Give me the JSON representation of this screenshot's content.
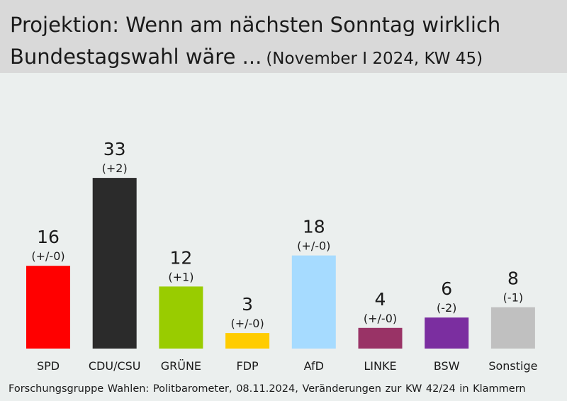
{
  "title_line1": "Projektion: Wenn am nächsten Sonntag wirklich",
  "title_line2": "Bundestagswahl wäre ...",
  "subtitle": "(November I 2024, KW 45)",
  "footer": "Forschungsgruppe Wahlen: Politbarometer, 08.11.2024, Veränderungen zur KW 42/24 in Klammern",
  "chart_data": {
    "type": "bar",
    "title": "Projektion: Wenn am nächsten Sonntag wirklich Bundestagswahl wäre ...",
    "subtitle": "(November I 2024, KW 45)",
    "xlabel": "",
    "ylabel": "",
    "ylim": [
      0,
      40
    ],
    "categories": [
      "SPD",
      "CDU/CSU",
      "GRÜNE",
      "FDP",
      "AfD",
      "LINKE",
      "BSW",
      "Sonstige"
    ],
    "values": [
      16,
      33,
      12,
      3,
      18,
      4,
      6,
      8
    ],
    "changes": [
      "(+/-0)",
      "(+2)",
      "(+1)",
      "(+/-0)",
      "(+/-0)",
      "(+/-0)",
      "(-2)",
      "(-1)"
    ],
    "colors": [
      "#ff0000",
      "#2b2b2b",
      "#99cc00",
      "#ffcc00",
      "#a6dbff",
      "#993366",
      "#7b2ea0",
      "#c0c0c0"
    ]
  }
}
